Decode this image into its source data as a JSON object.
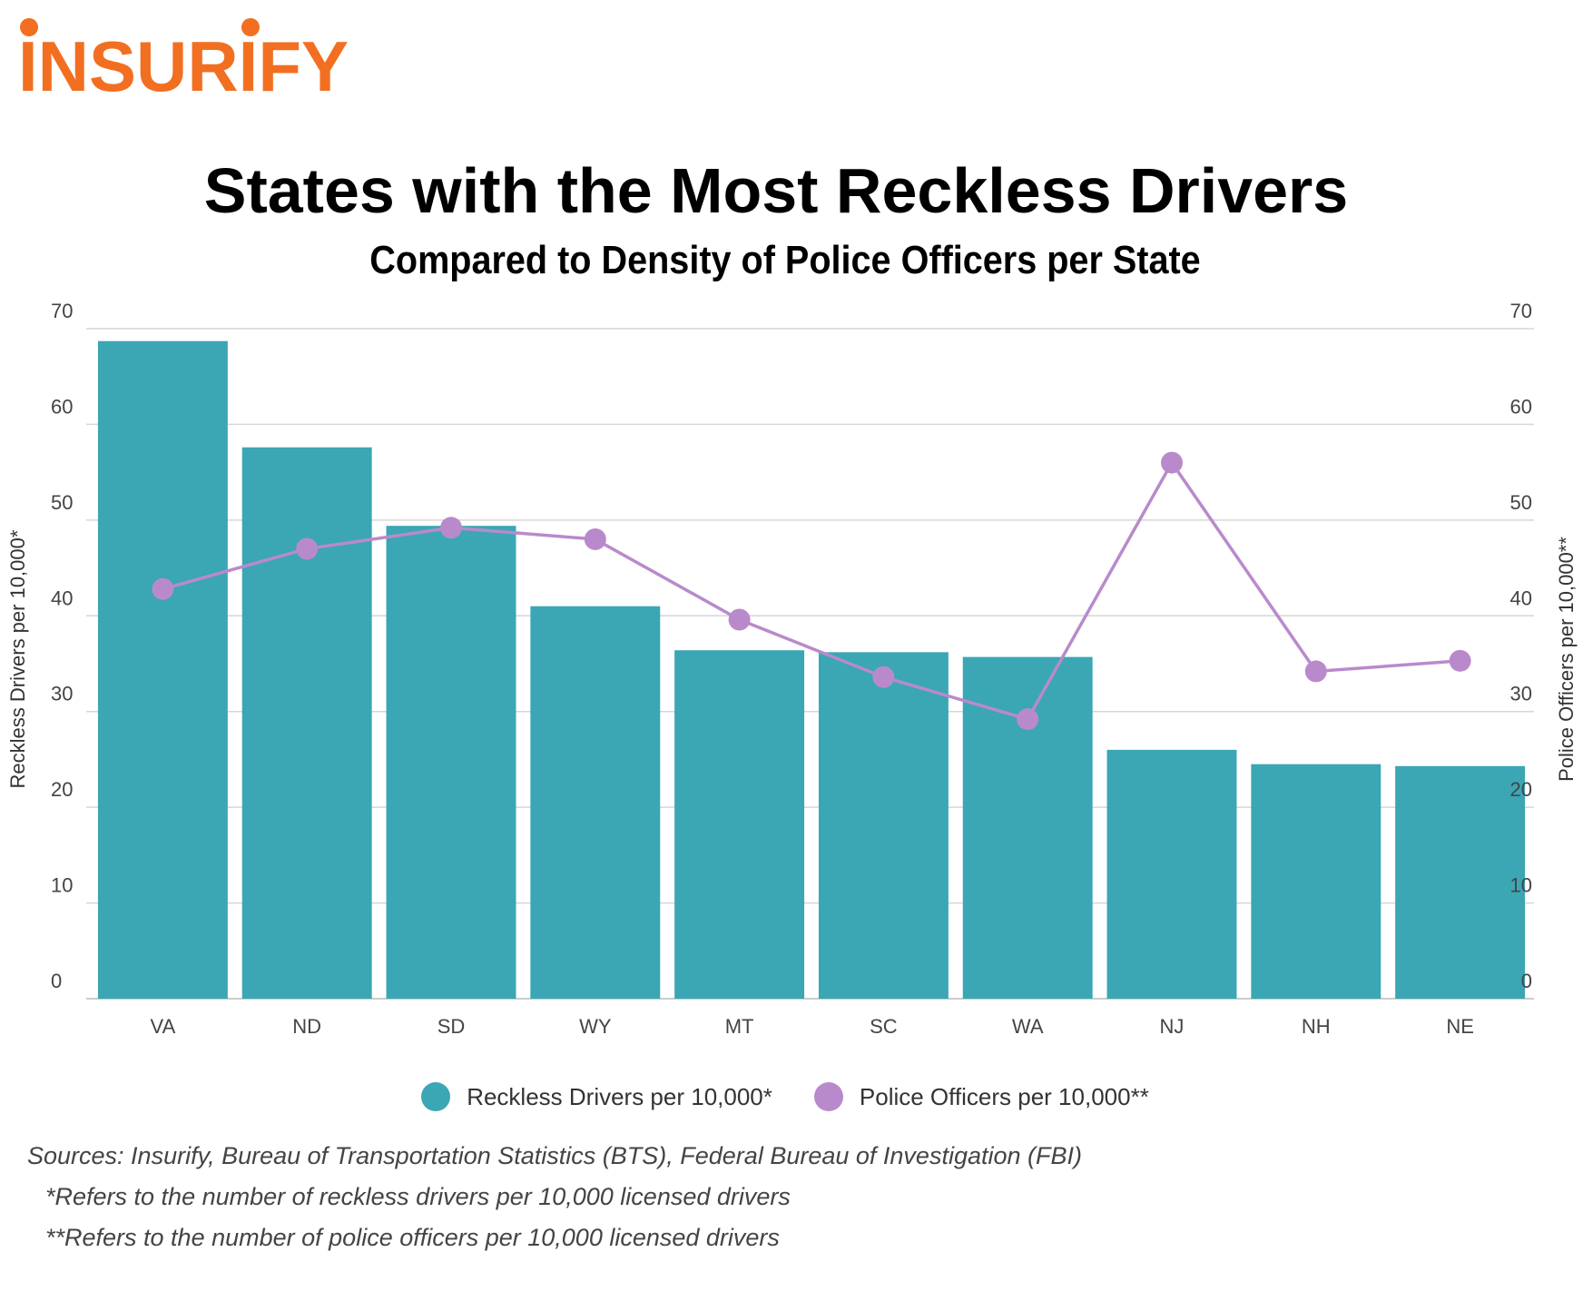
{
  "brand": {
    "logo_text": "INSURIFY",
    "logo_color": "#f26f21"
  },
  "chart_data": {
    "type": "bar+line",
    "title": "States with the Most Reckless Drivers",
    "subtitle": "Compared to Density of Police Officers per State",
    "categories": [
      "VA",
      "ND",
      "SD",
      "WY",
      "MT",
      "SC",
      "WA",
      "NJ",
      "NH",
      "NE"
    ],
    "series": [
      {
        "name": "Reckless Drivers per 10,000*",
        "kind": "bar",
        "axis": "left",
        "color": "#3ba6b4",
        "values": [
          68.7,
          57.6,
          49.4,
          41.0,
          36.4,
          36.2,
          35.7,
          26.0,
          24.5,
          24.3
        ]
      },
      {
        "name": "Police Officers per 10,000**",
        "kind": "line",
        "axis": "right",
        "color": "#b98acb",
        "values": [
          42.8,
          47.0,
          49.2,
          48.0,
          39.6,
          33.6,
          29.2,
          56.0,
          34.2,
          35.3
        ]
      }
    ],
    "ylabel_left": "Reckless Drivers per 10,000*",
    "ylabel_right": "Police Officers per 10,000**",
    "ylim": [
      0,
      70
    ],
    "yticks": [
      0,
      10,
      20,
      30,
      40,
      50,
      60,
      70
    ],
    "grid": true,
    "legend_position": "bottom-center"
  },
  "notes": {
    "sources": "Sources: Insurify, Bureau of Transportation Statistics (BTS), Federal Bureau of Investigation (FBI)",
    "note1": "*Refers to the number of reckless drivers per 10,000 licensed drivers",
    "note2": "**Refers to the number of police officers per 10,000 licensed drivers"
  }
}
